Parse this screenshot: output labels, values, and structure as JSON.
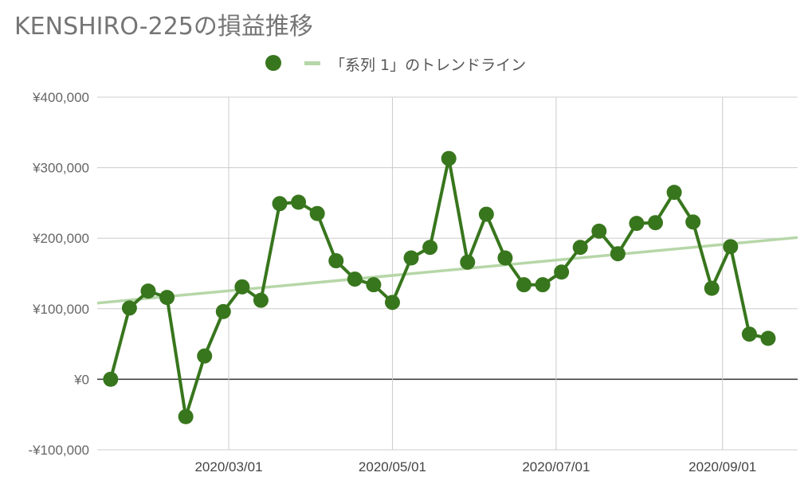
{
  "chart_data": {
    "type": "line",
    "title": "KENSHIRO-225の損益推移",
    "xlabel": "",
    "ylabel": "",
    "ylim": [
      -100000,
      400000
    ],
    "y_ticks": [
      -100000,
      0,
      100000,
      200000,
      300000,
      400000
    ],
    "y_tick_labels": [
      "-¥100,000",
      "¥0",
      "¥100,000",
      "¥200,000",
      "¥300,000",
      "¥400,000"
    ],
    "xlim": [
      "2020-01-12",
      "2020-09-29"
    ],
    "x_ticks": [
      "2020-03-01",
      "2020-05-01",
      "2020-07-01",
      "2020-09-01"
    ],
    "x_tick_labels": [
      "2020/03/01",
      "2020/05/01",
      "2020/07/01",
      "2020/09/01"
    ],
    "grid": true,
    "legend": "top-center",
    "series": [
      {
        "name": "",
        "color": "#38761d",
        "points": [
          {
            "x": "2020-01-17",
            "y": 0
          },
          {
            "x": "2020-01-24",
            "y": 101000
          },
          {
            "x": "2020-01-31",
            "y": 125000
          },
          {
            "x": "2020-02-07",
            "y": 116000
          },
          {
            "x": "2020-02-14",
            "y": -53000
          },
          {
            "x": "2020-02-21",
            "y": 33000
          },
          {
            "x": "2020-02-28",
            "y": 96000
          },
          {
            "x": "2020-03-06",
            "y": 131000
          },
          {
            "x": "2020-03-13",
            "y": 112000
          },
          {
            "x": "2020-03-20",
            "y": 249000
          },
          {
            "x": "2020-03-27",
            "y": 251000
          },
          {
            "x": "2020-04-03",
            "y": 235000
          },
          {
            "x": "2020-04-10",
            "y": 168000
          },
          {
            "x": "2020-04-17",
            "y": 142000
          },
          {
            "x": "2020-04-24",
            "y": 134000
          },
          {
            "x": "2020-05-01",
            "y": 109000
          },
          {
            "x": "2020-05-08",
            "y": 172000
          },
          {
            "x": "2020-05-15",
            "y": 187000
          },
          {
            "x": "2020-05-22",
            "y": 313000
          },
          {
            "x": "2020-05-29",
            "y": 166000
          },
          {
            "x": "2020-06-05",
            "y": 234000
          },
          {
            "x": "2020-06-12",
            "y": 172000
          },
          {
            "x": "2020-06-19",
            "y": 134000
          },
          {
            "x": "2020-06-26",
            "y": 134000
          },
          {
            "x": "2020-07-03",
            "y": 152000
          },
          {
            "x": "2020-07-10",
            "y": 187000
          },
          {
            "x": "2020-07-17",
            "y": 210000
          },
          {
            "x": "2020-07-24",
            "y": 178000
          },
          {
            "x": "2020-07-31",
            "y": 221000
          },
          {
            "x": "2020-08-07",
            "y": 222000
          },
          {
            "x": "2020-08-14",
            "y": 265000
          },
          {
            "x": "2020-08-21",
            "y": 223000
          },
          {
            "x": "2020-08-28",
            "y": 129000
          },
          {
            "x": "2020-09-04",
            "y": 188000
          },
          {
            "x": "2020-09-11",
            "y": 64000
          },
          {
            "x": "2020-09-18",
            "y": 58000
          }
        ]
      }
    ],
    "trendline": {
      "name": "「系列 1」のトレンドライン",
      "color": "#b6d7a8",
      "points": [
        {
          "x": "2020-01-12",
          "y": 108000
        },
        {
          "x": "2020-09-29",
          "y": 201000
        }
      ]
    }
  }
}
